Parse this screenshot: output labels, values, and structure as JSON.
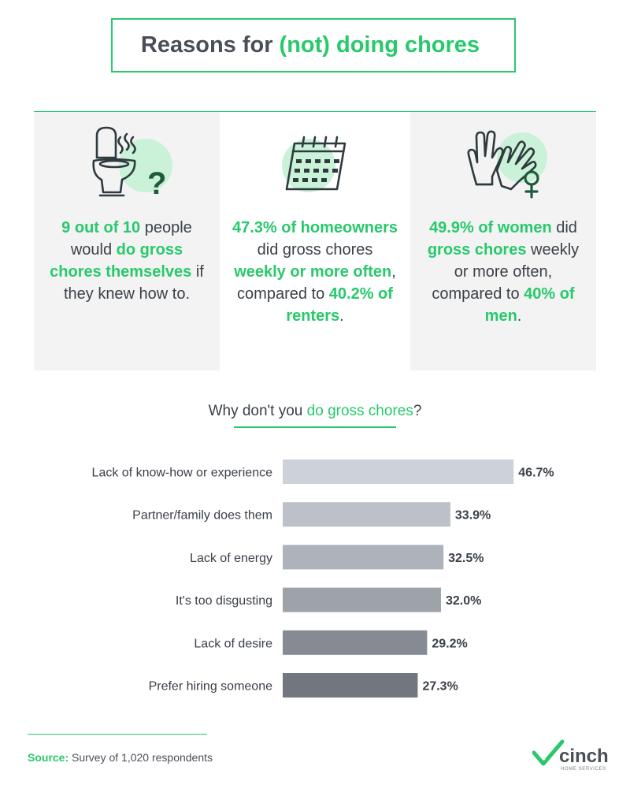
{
  "title": {
    "pre": "Reasons for",
    "highlight": "(not) doing chores",
    "post": ""
  },
  "cards": [
    {
      "parts": [
        {
          "text": "9 out of 10",
          "hl": true
        },
        {
          "text": " people would ",
          "hl": false
        },
        {
          "text": "do gross chores themselves",
          "hl": true
        },
        {
          "text": " if they knew how to.",
          "hl": false
        }
      ]
    },
    {
      "parts": [
        {
          "text": "47.3% of homeowners",
          "hl": true
        },
        {
          "text": " did gross chores ",
          "hl": false
        },
        {
          "text": "weekly or more often",
          "hl": true
        },
        {
          "text": ", compared to ",
          "hl": false
        },
        {
          "text": "40.2% of renters",
          "hl": true
        },
        {
          "text": ".",
          "hl": false
        }
      ]
    },
    {
      "parts": [
        {
          "text": "49.9% of women",
          "hl": true
        },
        {
          "text": " did ",
          "hl": false
        },
        {
          "text": "gross chores",
          "hl": true
        },
        {
          "text": " weekly or more often, compared to ",
          "hl": false
        },
        {
          "text": "40% of men",
          "hl": true
        },
        {
          "text": ".",
          "hl": false
        }
      ]
    }
  ],
  "chart_question": {
    "pre": "Why don't you ",
    "highlight": "do gross chores",
    "post": "?"
  },
  "chart_data": {
    "type": "bar",
    "orientation": "horizontal",
    "categories": [
      "Lack of know-how or experience",
      "Partner/family does them",
      "Lack of energy",
      "It's too disgusting",
      "Lack of desire",
      "Prefer hiring someone"
    ],
    "values": [
      46.7,
      33.9,
      32.5,
      32.0,
      29.2,
      27.3
    ],
    "value_labels": [
      "46.7%",
      "33.9%",
      "32.5%",
      "32.0%",
      "29.2%",
      "27.3%"
    ],
    "colors": [
      "#cdd2da",
      "#bcc0c8",
      "#aeb2ba",
      "#9ea2a9",
      "#868b93",
      "#72767e"
    ],
    "xlim": [
      0,
      100
    ]
  },
  "source": {
    "label": "Source:",
    "text": "Survey of 1,020 respondents"
  },
  "logo": {
    "name": "cinch",
    "tagline": "HOME SERVICES"
  },
  "colors": {
    "accent": "#27c96b",
    "circle": "#c9f2d8",
    "text": "#3b4048",
    "card_bg": "#f3f3f3"
  }
}
